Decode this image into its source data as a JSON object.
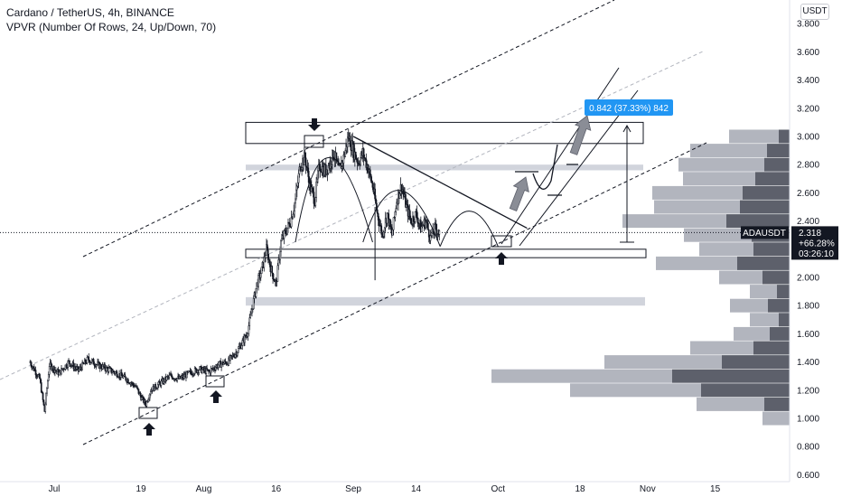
{
  "header": {
    "title": "Cardano / TetherUS, 4h, BINANCE",
    "indicator": "VPVR (Number Of Rows, 24, Up/Down, 70)"
  },
  "currency_button": "USDT",
  "colors": {
    "candle": "#131722",
    "accent": "#2196f3",
    "volume_up": "#b2b5be",
    "volume_down": "#5d606b",
    "zone_gray": "#d1d4dc",
    "arrow_gray": "#8a8d96"
  },
  "chart_data": {
    "type": "candlestick",
    "symbol": "ADAUSDT",
    "timeframe": "4h",
    "ylim": [
      0.6,
      3.9
    ],
    "yticks": [
      "3.800",
      "3.600",
      "3.400",
      "3.200",
      "3.000",
      "2.800",
      "2.600",
      "2.400",
      "2.200",
      "2.000",
      "1.800",
      "1.600",
      "1.400",
      "1.200",
      "1.000",
      "0.800",
      "0.600"
    ],
    "xticks": [
      {
        "label": "Jul",
        "day": 0
      },
      {
        "label": "19",
        "day": 18
      },
      {
        "label": "Aug",
        "day": 31
      },
      {
        "label": "16",
        "day": 46
      },
      {
        "label": "Sep",
        "day": 62
      },
      {
        "label": "14",
        "day": 75
      },
      {
        "label": "Oct",
        "day": 92
      },
      {
        "label": "18",
        "day": 109
      },
      {
        "label": "Nov",
        "day": 123
      },
      {
        "label": "15",
        "day": 137
      }
    ],
    "price_path": [
      [
        -5,
        1.4
      ],
      [
        -3,
        1.28
      ],
      [
        -2,
        1.05
      ],
      [
        -1,
        1.38
      ],
      [
        1,
        1.32
      ],
      [
        3,
        1.4
      ],
      [
        5,
        1.34
      ],
      [
        7,
        1.42
      ],
      [
        9,
        1.38
      ],
      [
        11,
        1.35
      ],
      [
        13,
        1.32
      ],
      [
        15,
        1.28
      ],
      [
        17,
        1.22
      ],
      [
        18,
        1.15
      ],
      [
        19,
        1.1
      ],
      [
        20,
        1.2
      ],
      [
        22,
        1.25
      ],
      [
        24,
        1.3
      ],
      [
        26,
        1.28
      ],
      [
        28,
        1.32
      ],
      [
        30,
        1.35
      ],
      [
        32,
        1.33
      ],
      [
        34,
        1.38
      ],
      [
        36,
        1.4
      ],
      [
        38,
        1.48
      ],
      [
        40,
        1.6
      ],
      [
        42,
        1.95
      ],
      [
        43,
        2.05
      ],
      [
        44,
        2.2
      ],
      [
        45,
        2.05
      ],
      [
        46,
        1.95
      ],
      [
        47,
        2.25
      ],
      [
        49,
        2.4
      ],
      [
        50,
        2.55
      ],
      [
        51,
        2.8
      ],
      [
        52,
        2.85
      ],
      [
        53,
        2.65
      ],
      [
        54,
        2.55
      ],
      [
        55,
        2.8
      ],
      [
        56,
        2.75
      ],
      [
        57,
        2.8
      ],
      [
        58,
        2.88
      ],
      [
        59,
        2.75
      ],
      [
        60,
        2.85
      ],
      [
        61,
        3.0
      ],
      [
        62,
        2.9
      ],
      [
        63,
        2.82
      ],
      [
        64,
        2.88
      ],
      [
        65,
        2.78
      ],
      [
        66,
        2.65
      ],
      [
        67,
        2.45
      ],
      [
        68,
        2.3
      ],
      [
        69,
        2.45
      ],
      [
        70,
        2.3
      ],
      [
        71,
        2.55
      ],
      [
        72,
        2.65
      ],
      [
        73,
        2.5
      ],
      [
        74,
        2.4
      ],
      [
        75,
        2.45
      ],
      [
        76,
        2.35
      ],
      [
        77,
        2.4
      ],
      [
        78,
        2.28
      ],
      [
        79,
        2.35
      ],
      [
        80,
        2.3
      ]
    ],
    "candle_seed": 7,
    "last_price": {
      "symbol": "ADAUSDT",
      "price": "2.318",
      "change": "+66.28%",
      "countdown": "03:26:10"
    },
    "measure_label": "0.842 (37.33%) 842",
    "volume_profile": [
      {
        "price": 3.0,
        "up": 55,
        "down": 12
      },
      {
        "price": 2.9,
        "up": 85,
        "down": 25
      },
      {
        "price": 2.8,
        "up": 95,
        "down": 28
      },
      {
        "price": 2.7,
        "up": 80,
        "down": 38
      },
      {
        "price": 2.6,
        "up": 100,
        "down": 52
      },
      {
        "price": 2.5,
        "up": 95,
        "down": 55
      },
      {
        "price": 2.4,
        "up": 115,
        "down": 70
      },
      {
        "price": 2.3,
        "up": 75,
        "down": 42
      },
      {
        "price": 2.2,
        "up": 60,
        "down": 40
      },
      {
        "price": 2.1,
        "up": 90,
        "down": 58
      },
      {
        "price": 2.0,
        "up": 48,
        "down": 30
      },
      {
        "price": 1.9,
        "up": 30,
        "down": 14
      },
      {
        "price": 1.8,
        "up": 42,
        "down": 24
      },
      {
        "price": 1.7,
        "up": 32,
        "down": 12
      },
      {
        "price": 1.6,
        "up": 40,
        "down": 22
      },
      {
        "price": 1.5,
        "up": 70,
        "down": 40
      },
      {
        "price": 1.4,
        "up": 130,
        "down": 75
      },
      {
        "price": 1.3,
        "up": 200,
        "down": 130
      },
      {
        "price": 1.2,
        "up": 145,
        "down": 98
      },
      {
        "price": 1.1,
        "up": 75,
        "down": 28
      },
      {
        "price": 1.0,
        "up": 30,
        "down": 0
      }
    ],
    "annotations": {
      "resistance_box": [
        2.95,
        3.1
      ],
      "support_box": [
        2.14,
        2.2
      ],
      "gray_zone_top": [
        2.76,
        2.8
      ],
      "gray_zone_bottom": [
        1.8,
        1.86
      ],
      "triangle_apex_day": 97
    }
  }
}
